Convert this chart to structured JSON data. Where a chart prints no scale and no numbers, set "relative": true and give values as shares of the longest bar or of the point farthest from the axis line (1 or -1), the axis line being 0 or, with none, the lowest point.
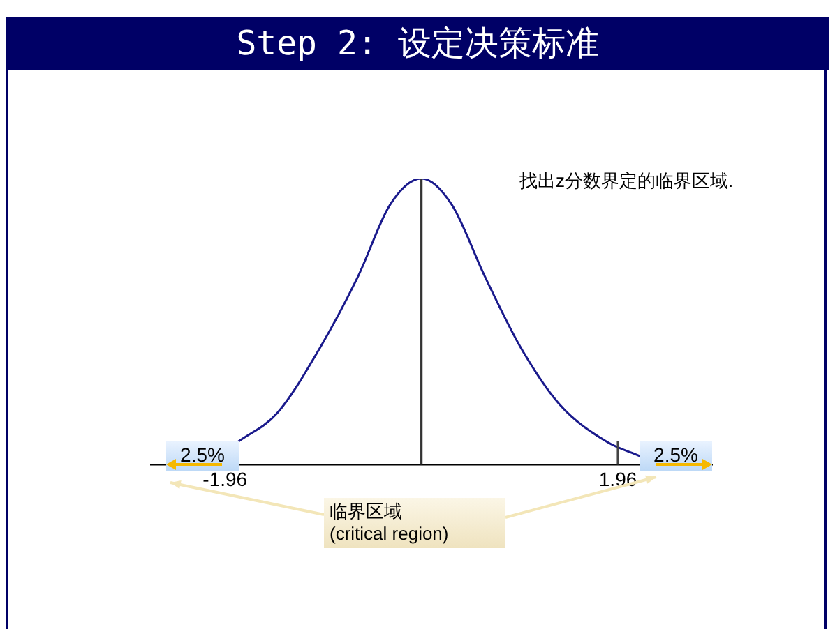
{
  "chart_data": {
    "type": "line",
    "title": "Step 2: 设定决策标准",
    "relative": true,
    "color": "#1a1a8c",
    "marker": "none",
    "x": [
      -1.83,
      -1.44,
      -1.01,
      -0.63,
      -0.31,
      0,
      0.3,
      0.63,
      0.99,
      1.38,
      1.85,
      2.18
    ],
    "values": [
      0.08,
      0.18,
      0.41,
      0.66,
      0.91,
      1,
      0.91,
      0.66,
      0.41,
      0.21,
      0.08,
      0.03
    ],
    "xlim": [
      -2.7,
      2.9
    ],
    "xticks": [
      -1.96,
      1.96
    ],
    "ref_lines": [
      {
        "axis": "x",
        "value": 0,
        "color": "#333333"
      },
      {
        "axis": "x",
        "value": 1.96,
        "color": "#444444"
      }
    ],
    "annotations": [
      "找出z分数界定的临界区域.",
      "临界区域\n(critical region)",
      "2.5%",
      "2.5%"
    ],
    "grid": false,
    "legend": false
  }
}
